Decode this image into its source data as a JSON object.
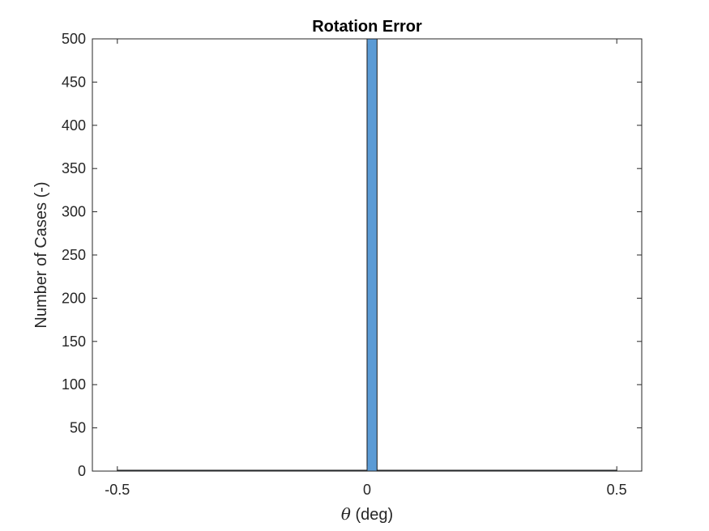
{
  "chart_data": {
    "type": "bar",
    "title": "Rotation Error",
    "xlabel_symbol": "θ",
    "xlabel_unit": " (deg)",
    "ylabel": "Number of Cases (-)",
    "xlim": [
      -0.55,
      0.55
    ],
    "ylim": [
      0,
      500
    ],
    "xticks": [
      -0.5,
      0,
      0.5
    ],
    "xtick_labels": [
      "-0.5",
      "0",
      "0.5"
    ],
    "yticks": [
      0,
      50,
      100,
      150,
      200,
      250,
      300,
      350,
      400,
      450,
      500
    ],
    "ytick_labels": [
      "0",
      "50",
      "100",
      "150",
      "200",
      "250",
      "300",
      "350",
      "400",
      "450",
      "500"
    ],
    "bins": [
      {
        "start": -0.5,
        "end": 0.0,
        "count": 1
      },
      {
        "start": 0.0,
        "end": 0.02,
        "count": 500
      },
      {
        "start": 0.02,
        "end": 0.5,
        "count": 1
      }
    ],
    "bar_color": "#5B9BD5",
    "edge_color": "#1A1A1A",
    "grid": false,
    "box": true
  }
}
